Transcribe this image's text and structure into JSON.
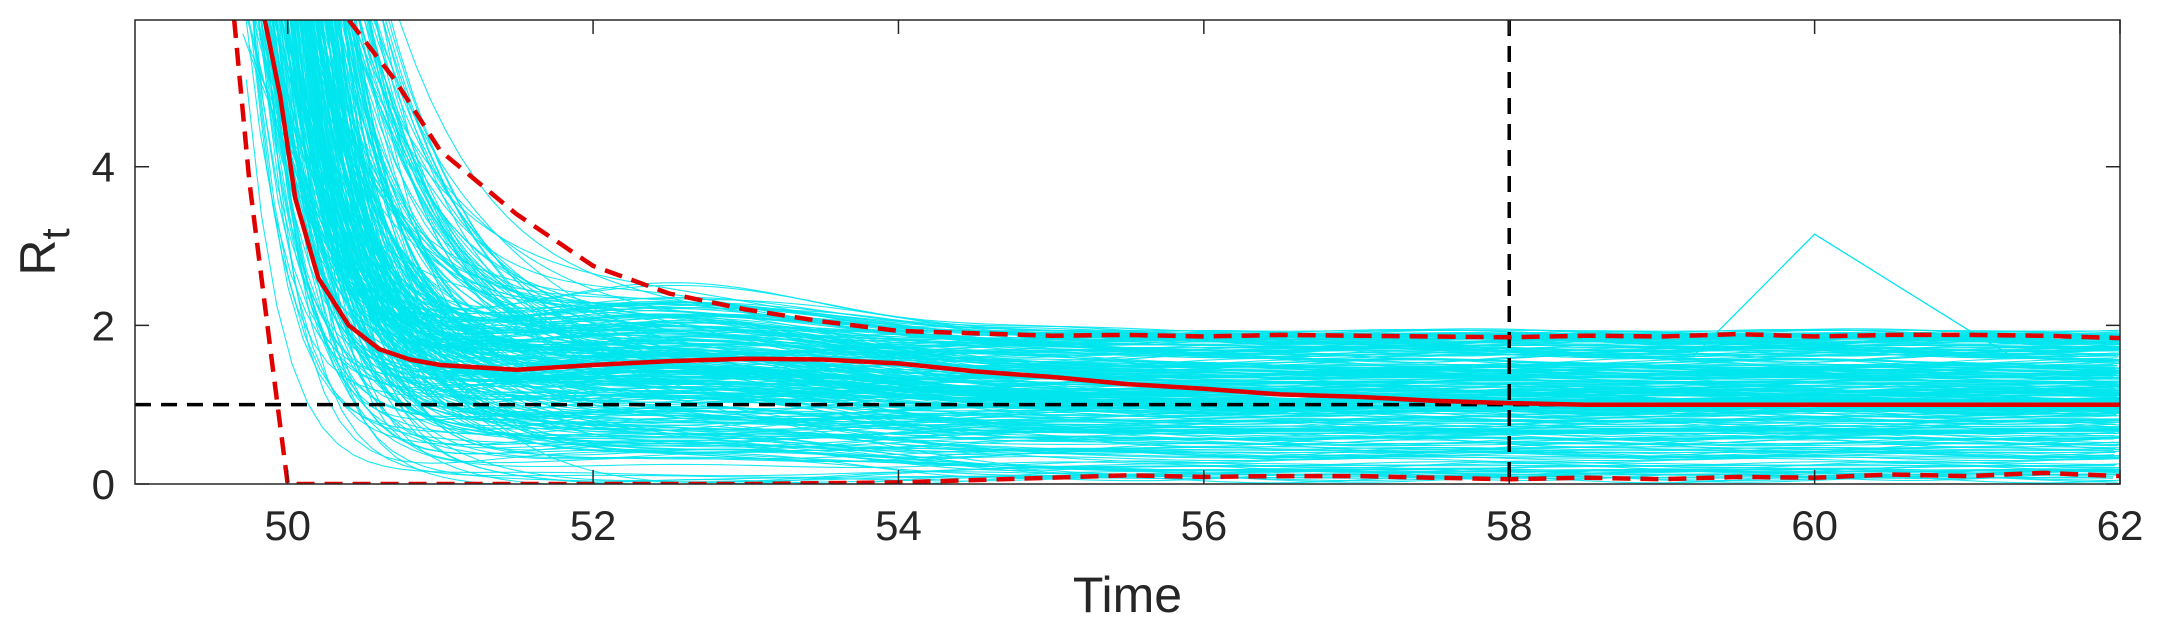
{
  "chart_data": {
    "type": "line",
    "xlabel": "Time",
    "ylabel_main": "R",
    "ylabel_sub": "t",
    "xlim": [
      49,
      62
    ],
    "ylim": [
      0,
      5.85
    ],
    "xticks": [
      50,
      52,
      54,
      56,
      58,
      60,
      62
    ],
    "xtick_labels": [
      "50",
      "52",
      "54",
      "56",
      "58",
      "60",
      "62"
    ],
    "yticks": [
      0,
      2,
      4
    ],
    "ytick_labels": [
      "0",
      "2",
      "4"
    ],
    "grid": false,
    "sample_count_approx": 300,
    "sample_color": "#00e5ee",
    "series": [
      {
        "role": "median",
        "color": "#e00000",
        "style": "solid",
        "x": [
          49.85,
          49.95,
          50.05,
          50.2,
          50.4,
          50.6,
          50.8,
          51.0,
          51.5,
          52.0,
          52.5,
          53.0,
          53.5,
          54.0,
          54.5,
          55.0,
          55.5,
          56.0,
          56.5,
          57.0,
          57.5,
          58.0,
          58.5,
          59.0,
          60.0,
          61.0,
          62.0
        ],
        "y": [
          5.85,
          4.9,
          3.6,
          2.6,
          2.0,
          1.7,
          1.57,
          1.5,
          1.44,
          1.5,
          1.55,
          1.58,
          1.57,
          1.52,
          1.42,
          1.35,
          1.26,
          1.2,
          1.13,
          1.1,
          1.05,
          1.02,
          1.0,
          1.0,
          1.0,
          1.0,
          1.0
        ]
      },
      {
        "role": "upper-bound",
        "color": "#e00000",
        "style": "dashed",
        "x": [
          50.4,
          50.7,
          51.0,
          51.5,
          52.0,
          52.5,
          53.0,
          53.5,
          54.0,
          54.5,
          55.0,
          55.5,
          56.0,
          56.5,
          57.0,
          57.5,
          58.0,
          58.5,
          59.0,
          59.5,
          60.0,
          60.5,
          61.0,
          61.5,
          62.0
        ],
        "y": [
          5.85,
          5.1,
          4.2,
          3.4,
          2.75,
          2.4,
          2.2,
          2.05,
          1.93,
          1.9,
          1.87,
          1.88,
          1.86,
          1.88,
          1.87,
          1.86,
          1.85,
          1.87,
          1.86,
          1.89,
          1.86,
          1.88,
          1.88,
          1.87,
          1.84
        ]
      },
      {
        "role": "lower-bound",
        "color": "#e00000",
        "style": "dashed",
        "x": [
          49.65,
          49.75,
          49.9,
          50.0,
          51.0,
          52.0,
          53.0,
          54.0,
          55.0,
          55.5,
          56.0,
          56.5,
          57.0,
          57.5,
          58.0,
          58.5,
          59.0,
          59.5,
          60.0,
          60.5,
          61.0,
          61.5,
          62.0
        ],
        "y": [
          5.85,
          3.8,
          1.5,
          0.0,
          0.0,
          0.0,
          0.0,
          0.02,
          0.08,
          0.11,
          0.09,
          0.1,
          0.1,
          0.08,
          0.06,
          0.08,
          0.06,
          0.09,
          0.08,
          0.12,
          0.1,
          0.14,
          0.1
        ]
      }
    ],
    "reference_lines": [
      {
        "orientation": "horizontal",
        "value": 1.0,
        "color": "#000000",
        "style": "dashed"
      },
      {
        "orientation": "vertical",
        "value": 58,
        "color": "#000000",
        "style": "dashed"
      }
    ],
    "annotations": [
      {
        "description": "outlier sample bump",
        "x": [
          59.2,
          60.0,
          61.0,
          61.3
        ],
        "y": [
          1.6,
          3.15,
          1.95,
          1.6
        ]
      }
    ]
  }
}
